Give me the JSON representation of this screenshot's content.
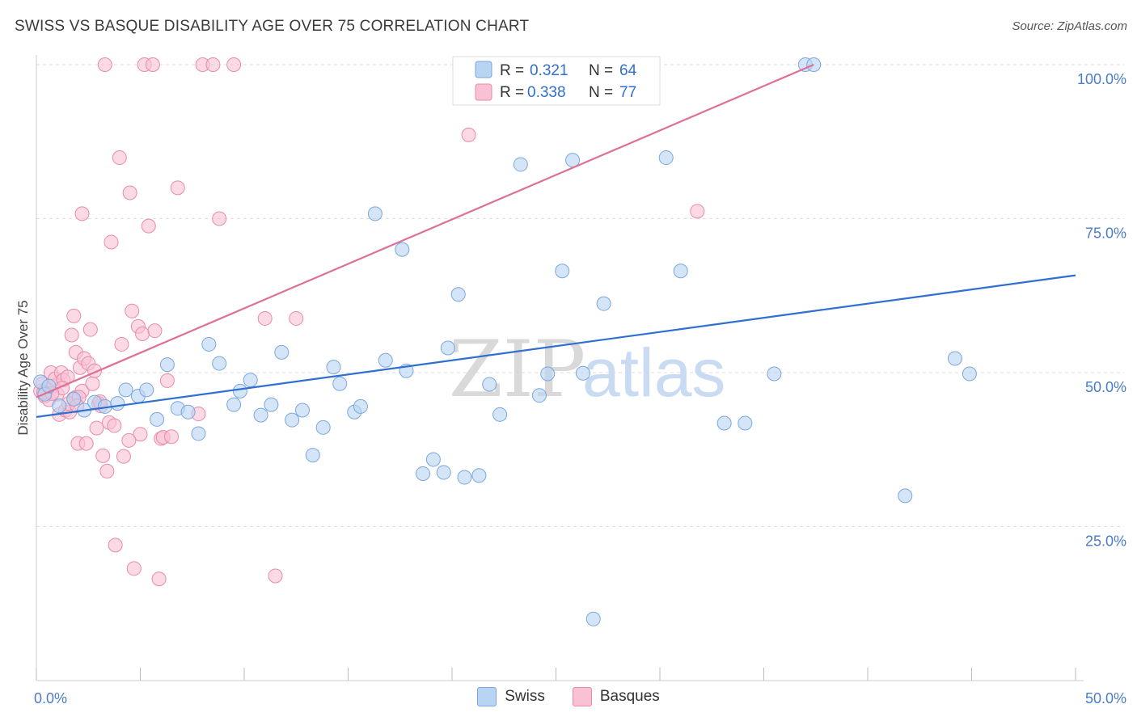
{
  "title": "SWISS VS BASQUE DISABILITY AGE OVER 75 CORRELATION CHART",
  "source": "Source: ZipAtlas.com",
  "watermark": {
    "zip": "ZIP",
    "atlas": "atlas"
  },
  "colors": {
    "swiss_fill": "#b9d3f3",
    "swiss_stroke": "#7aa7de",
    "swiss_line": "#2f6fd0",
    "basque_fill": "#f8c2d4",
    "basque_stroke": "#e98aab",
    "basque_line": "#e06f97",
    "grid": "#dddddd",
    "tick_label": "#4a7cc7"
  },
  "legend_top": {
    "swiss": {
      "r_label": "R =",
      "r_value": "0.321",
      "n_label": "N =",
      "n_value": "64"
    },
    "basques": {
      "r_label": "R =",
      "r_value": "0.338",
      "n_label": "N =",
      "n_value": "77"
    }
  },
  "legend_bottom": [
    "Swiss",
    "Basques"
  ],
  "chart_data": {
    "type": "scatter",
    "title": "SWISS VS BASQUE DISABILITY AGE OVER 75 CORRELATION CHART",
    "xlabel": "",
    "ylabel": "Disability Age Over 75",
    "xlim": [
      0,
      50
    ],
    "ylim": [
      0,
      100
    ],
    "x_tick_labels": [
      "0.0%",
      "50.0%"
    ],
    "y_ticks": [
      25,
      50,
      75,
      100
    ],
    "y_tick_labels": [
      "25.0%",
      "50.0%",
      "75.0%",
      "100.0%"
    ],
    "grid": true,
    "legend_position": "top-center",
    "series": [
      {
        "name": "Swiss",
        "trend": {
          "x": [
            0,
            50
          ],
          "y": [
            42.8,
            65.8
          ]
        },
        "points": [
          [
            0.2,
            48.5
          ],
          [
            0.4,
            46.5
          ],
          [
            0.6,
            47.8
          ],
          [
            1.1,
            44.6
          ],
          [
            1.8,
            45.7
          ],
          [
            2.3,
            43.9
          ],
          [
            2.8,
            45.2
          ],
          [
            3.3,
            44.5
          ],
          [
            3.9,
            45.0
          ],
          [
            4.3,
            47.2
          ],
          [
            4.9,
            46.2
          ],
          [
            5.3,
            47.2
          ],
          [
            5.8,
            42.4
          ],
          [
            6.3,
            51.3
          ],
          [
            6.8,
            44.2
          ],
          [
            7.3,
            43.6
          ],
          [
            7.8,
            40.1
          ],
          [
            8.3,
            54.6
          ],
          [
            8.8,
            51.5
          ],
          [
            9.5,
            44.8
          ],
          [
            9.8,
            47.0
          ],
          [
            10.3,
            48.8
          ],
          [
            10.8,
            43.1
          ],
          [
            11.3,
            44.8
          ],
          [
            11.8,
            53.3
          ],
          [
            12.3,
            42.3
          ],
          [
            12.8,
            43.9
          ],
          [
            13.3,
            36.6
          ],
          [
            13.8,
            41.1
          ],
          [
            14.3,
            50.9
          ],
          [
            14.6,
            48.2
          ],
          [
            15.3,
            43.6
          ],
          [
            15.6,
            44.5
          ],
          [
            16.3,
            75.8
          ],
          [
            16.8,
            52.0
          ],
          [
            17.6,
            70.0
          ],
          [
            17.8,
            50.3
          ],
          [
            18.6,
            33.6
          ],
          [
            19.1,
            35.9
          ],
          [
            19.6,
            33.8
          ],
          [
            19.8,
            54.0
          ],
          [
            20.3,
            62.7
          ],
          [
            20.6,
            33.0
          ],
          [
            21.3,
            33.3
          ],
          [
            21.8,
            48.1
          ],
          [
            22.3,
            43.2
          ],
          [
            23.3,
            83.8
          ],
          [
            24.2,
            46.3
          ],
          [
            24.6,
            49.8
          ],
          [
            25.3,
            66.5
          ],
          [
            25.8,
            84.5
          ],
          [
            26.3,
            49.9
          ],
          [
            26.8,
            10.0
          ],
          [
            27.3,
            61.2
          ],
          [
            30.3,
            84.9
          ],
          [
            31.0,
            66.5
          ],
          [
            33.1,
            41.8
          ],
          [
            34.1,
            41.8
          ],
          [
            35.5,
            49.8
          ],
          [
            37.0,
            100.0
          ],
          [
            37.4,
            100.0
          ],
          [
            44.2,
            52.3
          ],
          [
            44.9,
            49.8
          ],
          [
            41.8,
            30.0
          ]
        ]
      },
      {
        "name": "Basques",
        "trend": {
          "x": [
            0,
            37.4
          ],
          "y": [
            46.0,
            100.0
          ]
        },
        "points": [
          [
            0.2,
            47.0
          ],
          [
            0.3,
            48.2
          ],
          [
            0.4,
            46.2
          ],
          [
            0.5,
            47.2
          ],
          [
            0.6,
            45.6
          ],
          [
            0.7,
            50.0
          ],
          [
            0.8,
            47.8
          ],
          [
            0.9,
            49.0
          ],
          [
            1.0,
            46.5
          ],
          [
            1.1,
            43.2
          ],
          [
            1.2,
            50.0
          ],
          [
            1.3,
            48.8
          ],
          [
            1.4,
            43.9
          ],
          [
            1.5,
            49.3
          ],
          [
            1.6,
            43.6
          ],
          [
            1.7,
            56.1
          ],
          [
            1.8,
            59.2
          ],
          [
            1.8,
            45.8
          ],
          [
            1.9,
            53.3
          ],
          [
            1.9,
            46.0
          ],
          [
            2.0,
            38.5
          ],
          [
            2.1,
            50.8
          ],
          [
            2.2,
            47.0
          ],
          [
            2.2,
            75.8
          ],
          [
            2.3,
            52.3
          ],
          [
            2.4,
            38.5
          ],
          [
            2.5,
            51.5
          ],
          [
            2.6,
            57.0
          ],
          [
            2.7,
            48.2
          ],
          [
            2.8,
            50.3
          ],
          [
            2.9,
            41.0
          ],
          [
            3.0,
            45.0
          ],
          [
            3.1,
            44.6
          ],
          [
            3.2,
            36.5
          ],
          [
            3.3,
            100.0
          ],
          [
            3.4,
            34.0
          ],
          [
            3.5,
            41.9
          ],
          [
            3.6,
            71.2
          ],
          [
            3.8,
            22.0
          ],
          [
            4.0,
            84.9
          ],
          [
            4.1,
            54.6
          ],
          [
            4.2,
            36.4
          ],
          [
            4.5,
            79.2
          ],
          [
            4.6,
            60.0
          ],
          [
            4.7,
            18.2
          ],
          [
            4.9,
            57.5
          ],
          [
            5.0,
            40.0
          ],
          [
            5.1,
            56.3
          ],
          [
            5.2,
            100.0
          ],
          [
            5.4,
            73.8
          ],
          [
            5.6,
            100.0
          ],
          [
            5.7,
            56.8
          ],
          [
            5.9,
            16.5
          ],
          [
            6.0,
            39.3
          ],
          [
            6.1,
            39.5
          ],
          [
            6.3,
            48.7
          ],
          [
            6.5,
            39.6
          ],
          [
            6.8,
            80.0
          ],
          [
            7.8,
            43.3
          ],
          [
            8.0,
            100.0
          ],
          [
            8.5,
            100.0
          ],
          [
            8.8,
            75.0
          ],
          [
            9.5,
            100.0
          ],
          [
            11.0,
            58.8
          ],
          [
            11.5,
            17.0
          ],
          [
            12.5,
            58.8
          ],
          [
            20.8,
            88.6
          ],
          [
            31.8,
            76.2
          ],
          [
            0.35,
            46.8
          ],
          [
            1.25,
            47.5
          ],
          [
            1.55,
            45.0
          ],
          [
            2.05,
            46.0
          ],
          [
            0.75,
            46.6
          ],
          [
            1.95,
            44.6
          ],
          [
            3.75,
            41.4
          ],
          [
            4.45,
            39.0
          ],
          [
            3.05,
            45.3
          ]
        ]
      }
    ]
  }
}
